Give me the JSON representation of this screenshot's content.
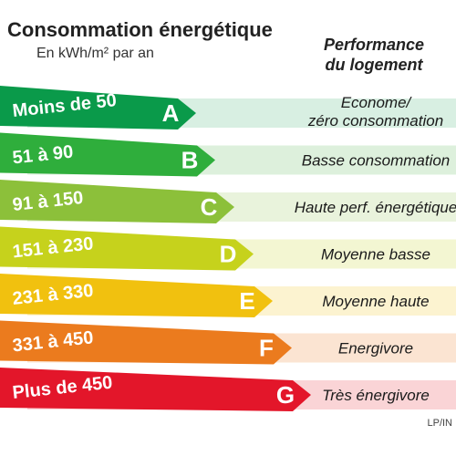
{
  "header": {
    "title": "Consommation énergétique",
    "subtitle": "En kWh/m² par an",
    "performance_title_line1": "Performance",
    "performance_title_line2": "du logement"
  },
  "credit": "LP/IN",
  "chart_data": {
    "type": "bar",
    "title": "Consommation énergétique",
    "subtitle": "En kWh/m² par an",
    "categories": [
      "A",
      "B",
      "C",
      "D",
      "E",
      "F",
      "G"
    ],
    "ranges": [
      "Moins de 50",
      "51 à 90",
      "91 à 150",
      "151 à 230",
      "231 à 330",
      "331 à 450",
      "Plus de 450"
    ],
    "performance": [
      [
        "Econome/",
        "zéro consommation"
      ],
      [
        "Basse consommation"
      ],
      [
        "Haute  perf. énergétique"
      ],
      [
        "Moyenne basse"
      ],
      [
        "Moyenne haute"
      ],
      [
        "Energivore"
      ],
      [
        "Très énergivore"
      ]
    ],
    "bar_colors": [
      "#0a9a4a",
      "#2fae3c",
      "#8cc03a",
      "#c6d21c",
      "#f1c10f",
      "#eb7b1e",
      "#e3162a"
    ],
    "band_colors": [
      "#d8efe2",
      "#ddf0dc",
      "#e9f3dc",
      "#f3f6d2",
      "#fcf3d0",
      "#fbe4d2",
      "#fad4d6"
    ]
  }
}
